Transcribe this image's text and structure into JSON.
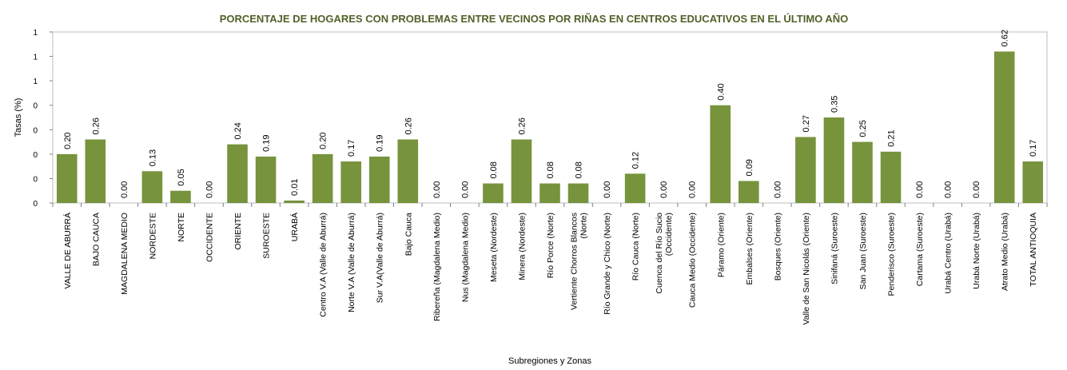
{
  "chart_data": {
    "type": "bar",
    "title": "PORCENTAJE DE HOGARES CON PROBLEMAS ENTRE VECINOS POR RIÑAS EN CENTROS EDUCATIVOS EN EL ÚLTIMO AÑO",
    "xlabel": "Subregiones y Zonas",
    "ylabel": "Tasas (%)",
    "ylim": [
      0,
      0.7
    ],
    "yticks": [
      0,
      0.1,
      0.2,
      0.3,
      0.4,
      0.5,
      0.6,
      0.7
    ],
    "ytick_labels": [
      "0",
      "0",
      "0",
      "0",
      "0",
      "1",
      "1",
      "1"
    ],
    "grid": false,
    "legend": "none",
    "bar_color": "#77933c",
    "title_color": "#4f6228",
    "categories": [
      [
        "VALLE DE ABURRÁ"
      ],
      [
        "BAJO CAUCA"
      ],
      [
        "MAGDALENA MEDIO"
      ],
      [
        "NORDESTE"
      ],
      [
        "NORTE"
      ],
      [
        "OCCIDENTE"
      ],
      [
        "ORIENTE"
      ],
      [
        "SUROESTE"
      ],
      [
        "URABÁ"
      ],
      [
        "Centro V.A (Valle de Aburrá)"
      ],
      [
        "Norte V.A (Valle de Aburrá)"
      ],
      [
        "Sur V.A(Valle de Aburrá)"
      ],
      [
        "Bajo Cauca"
      ],
      [
        "Ribereña  (Magdalena Medio)"
      ],
      [
        "Nus  (Magdalena Medio)"
      ],
      [
        "Meseta  (Nordeste)"
      ],
      [
        "Minera  (Nordeste)"
      ],
      [
        "Río Porce   (Norte)"
      ],
      [
        "Vertiente Chorros Blancos",
        "(Norte)"
      ],
      [
        "Río Grande y Chico  (Norte)"
      ],
      [
        "Río Cauca  (Norte)"
      ],
      [
        "Cuenca del Río Sucio",
        "(Occidente)"
      ],
      [
        "Cauca Medio  (Occidente)"
      ],
      [
        "Páramo  (Oriente)"
      ],
      [
        "Embalses  (Oriente)"
      ],
      [
        "Bosques  (Oriente)"
      ],
      [
        "Valle de San Nicolás  (Oriente)"
      ],
      [
        "Sinifaná  (Suroeste)"
      ],
      [
        "San Juan  (Suroeste)"
      ],
      [
        "Penderisco  (Suroeste)"
      ],
      [
        "Cartama  (Suroeste)"
      ],
      [
        "Urabá Centro  (Urabá)"
      ],
      [
        "Urabá Norte  (Urabá)"
      ],
      [
        "Atrato Medio  (Urabá)"
      ],
      [
        "TOTAL ANTIOQUIA"
      ]
    ],
    "values": [
      0.2,
      0.26,
      0.0,
      0.13,
      0.05,
      0.0,
      0.24,
      0.19,
      0.01,
      0.2,
      0.17,
      0.19,
      0.26,
      0.0,
      0.0,
      0.08,
      0.26,
      0.08,
      0.08,
      0.0,
      0.12,
      0.0,
      0.0,
      0.4,
      0.09,
      0.0,
      0.27,
      0.35,
      0.25,
      0.21,
      0.0,
      0.0,
      0.0,
      0.62,
      0.17
    ],
    "value_labels": [
      "0.20",
      "0.26",
      "0.00",
      "0.13",
      "0.05",
      "0.00",
      "0.24",
      "0.19",
      "0.01",
      "0.20",
      "0.17",
      "0.19",
      "0.26",
      "0.00",
      "0.00",
      "0.08",
      "0.26",
      "0.08",
      "0.08",
      "0.00",
      "0.12",
      "0.00",
      "0.00",
      "0.40",
      "0.09",
      "0.00",
      "0.27",
      "0.35",
      "0.25",
      "0.21",
      "0.00",
      "0.00",
      "0.00",
      "0.62",
      "0.17"
    ]
  }
}
